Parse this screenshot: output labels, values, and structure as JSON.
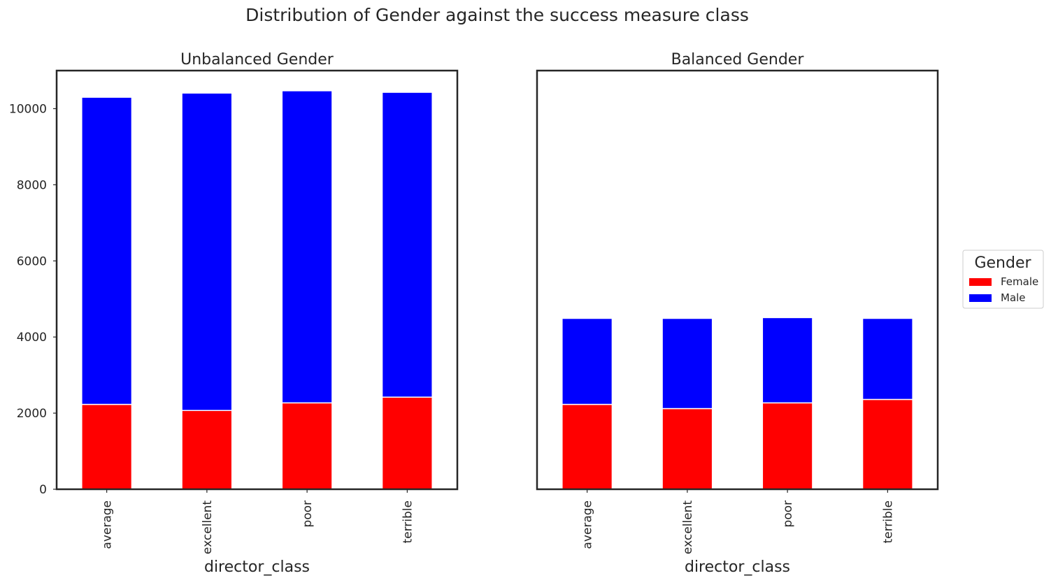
{
  "title": "Distribution of Gender against the success measure class",
  "legend": {
    "title": "Gender",
    "placement": "center-right",
    "items": [
      {
        "label": "Female",
        "color": "#ff0000"
      },
      {
        "label": "Male",
        "color": "#0000ff"
      }
    ]
  },
  "chart_data": [
    {
      "type": "bar",
      "stacked": true,
      "title": "Unbalanced Gender",
      "xlabel": "director_class",
      "ylabel": "",
      "categories": [
        "average",
        "excellent",
        "poor",
        "terrible"
      ],
      "series": [
        {
          "name": "Female",
          "color": "#ff0000",
          "values": [
            2230,
            2070,
            2270,
            2420
          ]
        },
        {
          "name": "Male",
          "color": "#0000ff",
          "values": [
            8070,
            8340,
            8200,
            8010
          ]
        }
      ],
      "ylim": [
        0,
        11000
      ],
      "yticks": [
        "0",
        "2000",
        "4000",
        "6000",
        "8000",
        "10000"
      ],
      "grid": false
    },
    {
      "type": "bar",
      "stacked": true,
      "title": "Balanced Gender",
      "xlabel": "director_class",
      "ylabel": "",
      "categories": [
        "average",
        "excellent",
        "poor",
        "terrible"
      ],
      "series": [
        {
          "name": "Female",
          "color": "#ff0000",
          "values": [
            2230,
            2120,
            2270,
            2360
          ]
        },
        {
          "name": "Male",
          "color": "#0000ff",
          "values": [
            2260,
            2370,
            2240,
            2130
          ]
        }
      ],
      "ylim": [
        0,
        11000
      ],
      "yticks": [],
      "grid": false
    }
  ]
}
